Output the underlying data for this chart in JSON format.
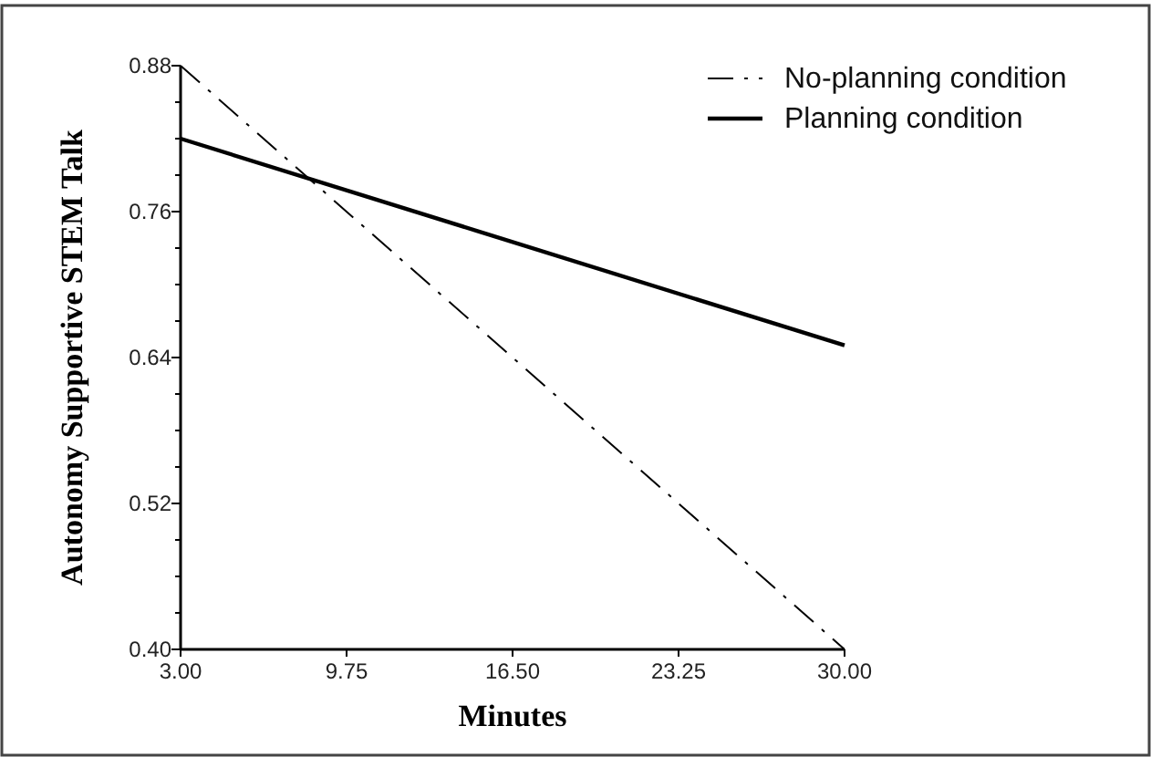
{
  "chart_data": {
    "type": "line",
    "xlabel": "Minutes",
    "ylabel": "Autonomy Supportive STEM Talk",
    "x": [
      3,
      30
    ],
    "series": [
      {
        "name": "No-planning condition",
        "color": "#000000",
        "values": [
          0.88,
          0.4
        ],
        "line_style": "dashed"
      },
      {
        "name": "Planning condition",
        "color": "#000000",
        "values": [
          0.82,
          0.65
        ],
        "line_style": "solid"
      }
    ],
    "xlim": [
      3,
      30
    ],
    "xticks": [
      {
        "value": 3,
        "label": "3.00"
      },
      {
        "value": 9.75,
        "label": "9.75"
      },
      {
        "value": 16.5,
        "label": "16.50"
      },
      {
        "value": 23.25,
        "label": "23.25"
      },
      {
        "value": 30,
        "label": "30.00"
      }
    ],
    "ylim": [
      0.4,
      0.88
    ],
    "yticks": [
      {
        "value": 0.4,
        "label": "0.40"
      },
      {
        "value": 0.43,
        "label": null
      },
      {
        "value": 0.46,
        "label": null
      },
      {
        "value": 0.49,
        "label": null
      },
      {
        "value": 0.52,
        "label": "0.52"
      },
      {
        "value": 0.55,
        "label": null
      },
      {
        "value": 0.58,
        "label": null
      },
      {
        "value": 0.61,
        "label": null
      },
      {
        "value": 0.64,
        "label": "0.64"
      },
      {
        "value": 0.67,
        "label": null
      },
      {
        "value": 0.7,
        "label": null
      },
      {
        "value": 0.73,
        "label": null
      },
      {
        "value": 0.76,
        "label": "0.76"
      },
      {
        "value": 0.79,
        "label": null
      },
      {
        "value": 0.82,
        "label": null
      },
      {
        "value": 0.85,
        "label": null
      },
      {
        "value": 0.88,
        "label": "0.88"
      }
    ],
    "grid": false,
    "legend": "top right",
    "marker": "none"
  }
}
